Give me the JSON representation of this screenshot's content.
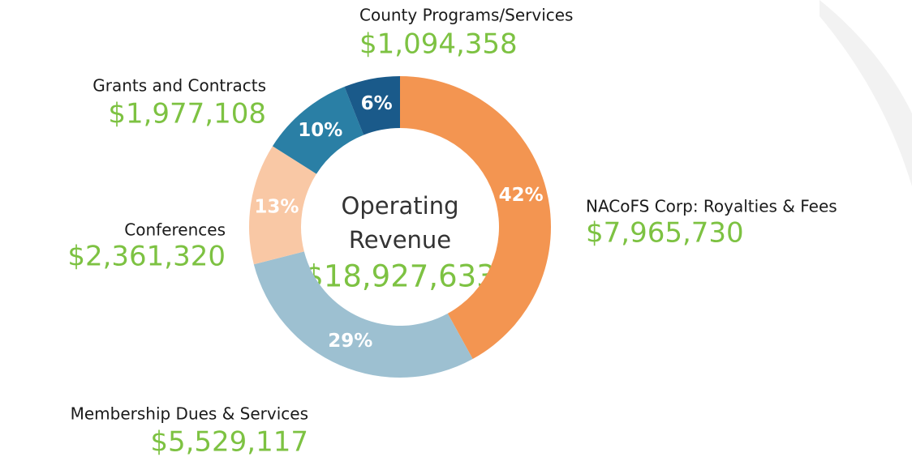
{
  "chart_data": {
    "type": "pie",
    "donut": true,
    "categories": [
      "NACoFS Corp: Royalties & Fees",
      "Membership Dues & Services",
      "Conferences",
      "Grants and Contracts",
      "County Programs/Services"
    ],
    "values": [
      42,
      29,
      13,
      10,
      6
    ],
    "value_labels": [
      "42%",
      "29%",
      "13%",
      "10%",
      "6%"
    ],
    "amounts": [
      "$7,965,730",
      "$5,529,117",
      "$2,361,320",
      "$1,977,108",
      "$1,094,358"
    ],
    "colors": [
      "#f39551",
      "#9dc0d1",
      "#f9c8a5",
      "#2a7fa5",
      "#1a5a8a"
    ],
    "center_label": [
      "Operating",
      "Revenue",
      "$18,927,633"
    ]
  }
}
